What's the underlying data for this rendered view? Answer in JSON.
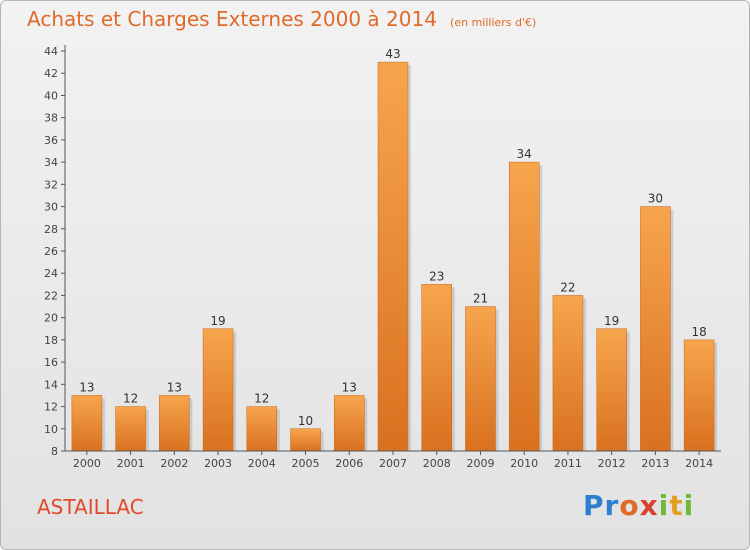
{
  "header": {
    "title": "Achats et Charges Externes 2000 à 2014",
    "unit": "(en milliers d'€)"
  },
  "footer": {
    "city": "ASTAILLAC",
    "logo_text": "Proxiti"
  },
  "colors": {
    "title": "#e06a2a",
    "bar_light": "#f7a54d",
    "bar_dark": "#d9711f",
    "city": "#e04a2a"
  },
  "chart_data": {
    "type": "bar",
    "title": "Achats et Charges Externes 2000 à 2014",
    "subtitle": "(en milliers d'€)",
    "xlabel": "",
    "ylabel": "",
    "categories": [
      "2000",
      "2001",
      "2002",
      "2003",
      "2004",
      "2005",
      "2006",
      "2007",
      "2008",
      "2009",
      "2010",
      "2011",
      "2012",
      "2013",
      "2014"
    ],
    "values": [
      13,
      12,
      13,
      19,
      12,
      10,
      13,
      43,
      23,
      21,
      34,
      22,
      19,
      30,
      18
    ],
    "ylim": [
      8,
      44
    ],
    "ytick_step": 2,
    "grid": false,
    "legend": "none",
    "data_labels": true
  }
}
